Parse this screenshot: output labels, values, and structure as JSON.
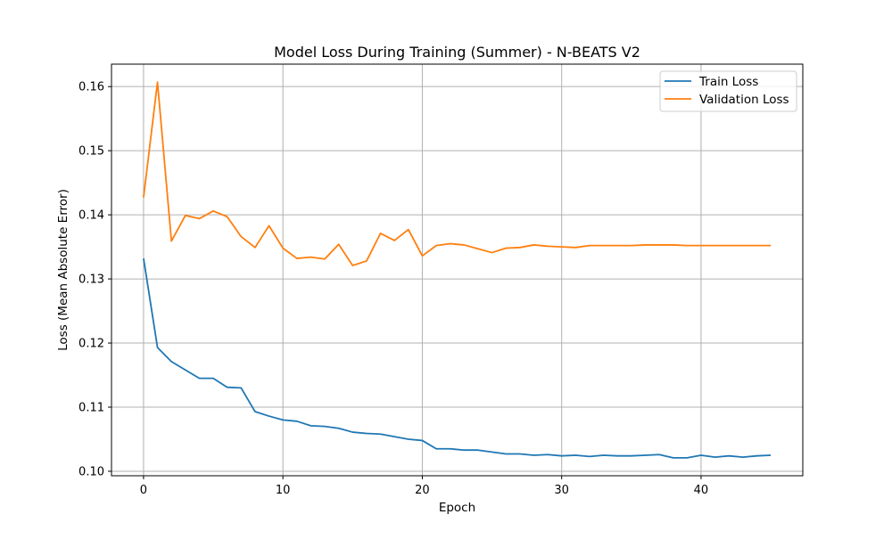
{
  "chart_data": {
    "type": "line",
    "title": "Model Loss During Training (Summer) - N-BEATS V2",
    "xlabel": "Epoch",
    "ylabel": "Loss (Mean Absolute Error)",
    "xlim": [
      -2.3,
      47.3
    ],
    "ylim": [
      0.0993,
      0.1635
    ],
    "xticks": [
      0,
      10,
      20,
      30,
      40
    ],
    "xtick_labels": [
      "0",
      "10",
      "20",
      "30",
      "40"
    ],
    "yticks": [
      0.1,
      0.11,
      0.12,
      0.13,
      0.14,
      0.15,
      0.16
    ],
    "ytick_labels": [
      "0.10",
      "0.11",
      "0.12",
      "0.13",
      "0.14",
      "0.15",
      "0.16"
    ],
    "grid": true,
    "legend_position": "upper right",
    "x": [
      0,
      1,
      2,
      3,
      4,
      5,
      6,
      7,
      8,
      9,
      10,
      11,
      12,
      13,
      14,
      15,
      16,
      17,
      18,
      19,
      20,
      21,
      22,
      23,
      24,
      25,
      26,
      27,
      28,
      29,
      30,
      31,
      32,
      33,
      34,
      35,
      36,
      37,
      38,
      39,
      40,
      41,
      42,
      43,
      44,
      45
    ],
    "series": [
      {
        "name": "Train Loss",
        "color": "#1f77b4",
        "values": [
          0.1332,
          0.1193,
          0.1171,
          0.1158,
          0.1145,
          0.1145,
          0.1131,
          0.113,
          0.1093,
          0.1086,
          0.108,
          0.1078,
          0.1071,
          0.107,
          0.1067,
          0.1061,
          0.1059,
          0.1058,
          0.1054,
          0.105,
          0.1048,
          0.1035,
          0.1035,
          0.1033,
          0.1033,
          0.103,
          0.1027,
          0.1027,
          0.1025,
          0.1026,
          0.1024,
          0.1025,
          0.1023,
          0.1025,
          0.1024,
          0.1024,
          0.1025,
          0.1026,
          0.1021,
          0.1021,
          0.1025,
          0.1022,
          0.1024,
          0.1022,
          0.1024,
          0.1025
        ]
      },
      {
        "name": "Validation Loss",
        "color": "#ff7f0e",
        "values": [
          0.1427,
          0.1607,
          0.1359,
          0.1399,
          0.1394,
          0.1406,
          0.1397,
          0.1366,
          0.1349,
          0.1383,
          0.1348,
          0.1332,
          0.1334,
          0.1331,
          0.1354,
          0.1321,
          0.1328,
          0.1371,
          0.136,
          0.1377,
          0.1336,
          0.1352,
          0.1355,
          0.1353,
          0.1347,
          0.1341,
          0.1348,
          0.1349,
          0.1353,
          0.1351,
          0.135,
          0.1349,
          0.1352,
          0.1352,
          0.1352,
          0.1352,
          0.1353,
          0.1353,
          0.1353,
          0.1352,
          0.1352,
          0.1352,
          0.1352,
          0.1352,
          0.1352,
          0.1352
        ]
      }
    ]
  }
}
